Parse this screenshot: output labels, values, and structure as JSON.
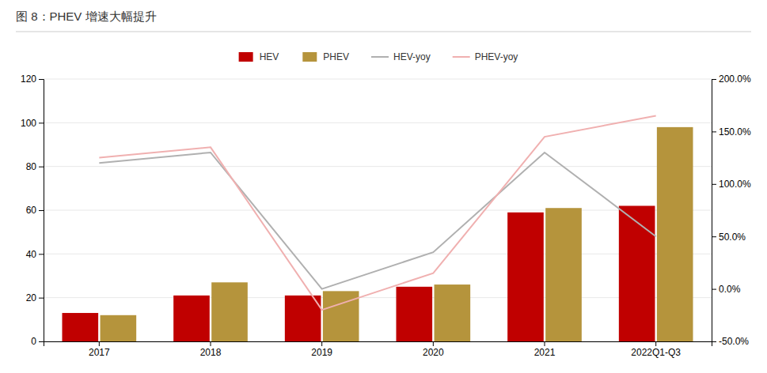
{
  "chart_data": {
    "type": "bar",
    "title": "图 8：PHEV 增速大幅提升",
    "categories": [
      "2017",
      "2018",
      "2019",
      "2020",
      "2021",
      "2022Q1-Q3"
    ],
    "series": [
      {
        "name": "HEV",
        "type": "bar",
        "color": "#c00000",
        "values": [
          13,
          21,
          21,
          25,
          59,
          62
        ]
      },
      {
        "name": "PHEV",
        "type": "bar",
        "color": "#b5943c",
        "values": [
          12,
          27,
          23,
          26,
          61,
          98
        ]
      },
      {
        "name": "HEV-yoy",
        "type": "line",
        "axis": "y2",
        "color": "#b0b0b0",
        "values": [
          120,
          130,
          0,
          35,
          130,
          50
        ]
      },
      {
        "name": "PHEV-yoy",
        "type": "line",
        "axis": "y2",
        "color": "#f0b0b0",
        "values": [
          125,
          135,
          -20,
          15,
          145,
          165
        ]
      }
    ],
    "ylim": [
      0,
      120
    ],
    "yticks": [
      0,
      20,
      40,
      60,
      80,
      100,
      120
    ],
    "y2lim": [
      -50,
      200
    ],
    "y2ticks": [
      {
        "value": -50,
        "label": "-50.0%"
      },
      {
        "value": 0,
        "label": "0.0%"
      },
      {
        "value": 50,
        "label": "50.0%"
      },
      {
        "value": 100,
        "label": "100.0%"
      },
      {
        "value": 150,
        "label": "150.0%"
      },
      {
        "value": 200,
        "label": "200.0%"
      }
    ],
    "grid": true,
    "legend": "top"
  }
}
